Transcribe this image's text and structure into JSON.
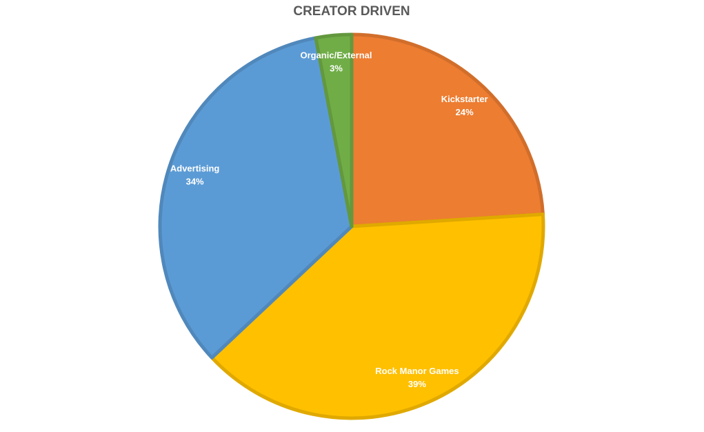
{
  "chart_data": {
    "type": "pie",
    "title": "CREATOR DRIVEN",
    "categories": [
      "Kickstarter",
      "Rock Manor Games",
      "Advertising",
      "Organic/External"
    ],
    "values": [
      24,
      39,
      34,
      3
    ],
    "value_labels": [
      "24%",
      "39%",
      "34%",
      "3%"
    ],
    "colors": [
      "#ED7D31",
      "#FFC000",
      "#5B9BD5",
      "#70AD47"
    ]
  }
}
